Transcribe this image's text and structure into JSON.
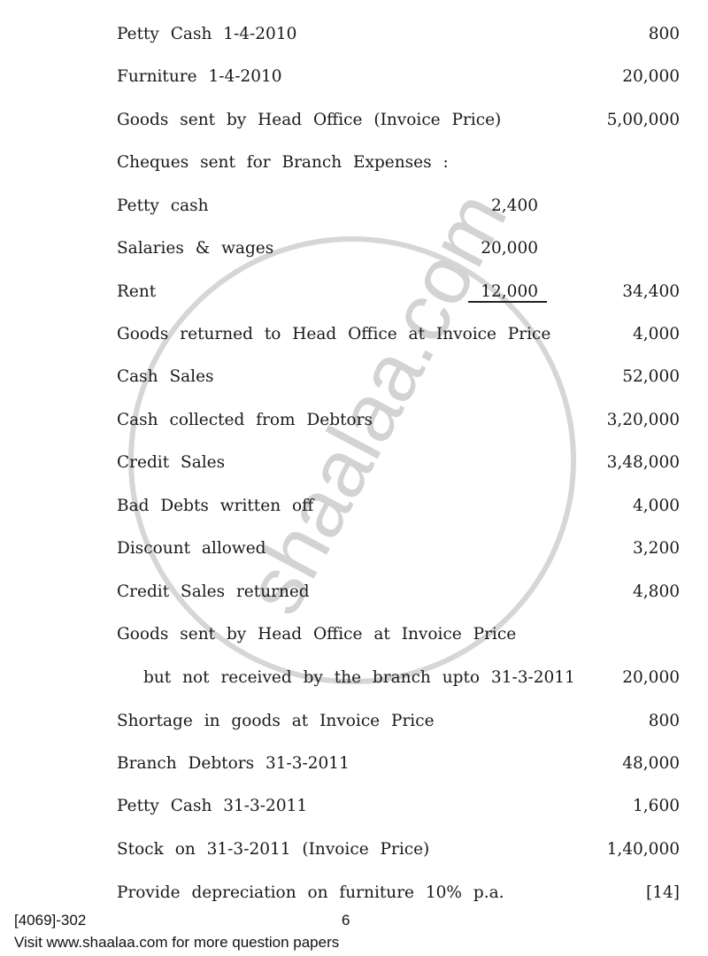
{
  "rows": [
    {
      "label": "Petty Cash 1-4-2010",
      "mid": "",
      "amount": "800"
    },
    {
      "label": "Furniture 1-4-2010",
      "mid": "",
      "amount": "20,000"
    },
    {
      "label": "Goods sent by Head Office (Invoice Price)",
      "mid": "",
      "amount": "5,00,000"
    },
    {
      "label": "Cheques sent for Branch Expenses :",
      "mid": "",
      "amount": ""
    },
    {
      "label": "Petty cash",
      "mid": "2,400",
      "amount": ""
    },
    {
      "label": "Salaries & wages",
      "mid": "20,000",
      "amount": ""
    },
    {
      "label": "Rent",
      "mid": "12,000",
      "amount": "34,400"
    },
    {
      "label": "Goods returned to Head Office at Invoice Price",
      "mid": "",
      "amount": "4,000"
    },
    {
      "label": "Cash Sales",
      "mid": "",
      "amount": "52,000"
    },
    {
      "label": "Cash collected from Debtors",
      "mid": "",
      "amount": "3,20,000"
    },
    {
      "label": "Credit Sales",
      "mid": "",
      "amount": "3,48,000"
    },
    {
      "label": "Bad Debts written off",
      "mid": "",
      "amount": "4,000"
    },
    {
      "label": "Discount allowed",
      "mid": "",
      "amount": "3,200"
    },
    {
      "label": "Credit Sales returned",
      "mid": "",
      "amount": "4,800"
    },
    {
      "label": "Goods sent by Head Office at Invoice Price",
      "mid": "",
      "amount": ""
    },
    {
      "label": "but not received by the branch upto 31-3-2011",
      "mid": "",
      "amount": "20,000"
    },
    {
      "label": "Shortage in goods at Invoice Price",
      "mid": "",
      "amount": "800"
    },
    {
      "label": "Branch Debtors 31-3-2011",
      "mid": "",
      "amount": "48,000"
    },
    {
      "label": "Petty Cash 31-3-2011",
      "mid": "",
      "amount": "1,600"
    },
    {
      "label": "Stock on 31-3-2011 (Invoice Price)",
      "mid": "",
      "amount": "1,40,000"
    },
    {
      "label": "Provide depreciation on furniture 10% p.a.",
      "mid": "",
      "amount": "[14]"
    }
  ],
  "footer": {
    "code": "[4069]-302",
    "page": "6",
    "visit": "Visit www.shaalaa.com for more question papers"
  },
  "watermark": {
    "text": "shaalaa.com",
    "color": "#d8d8d8"
  }
}
